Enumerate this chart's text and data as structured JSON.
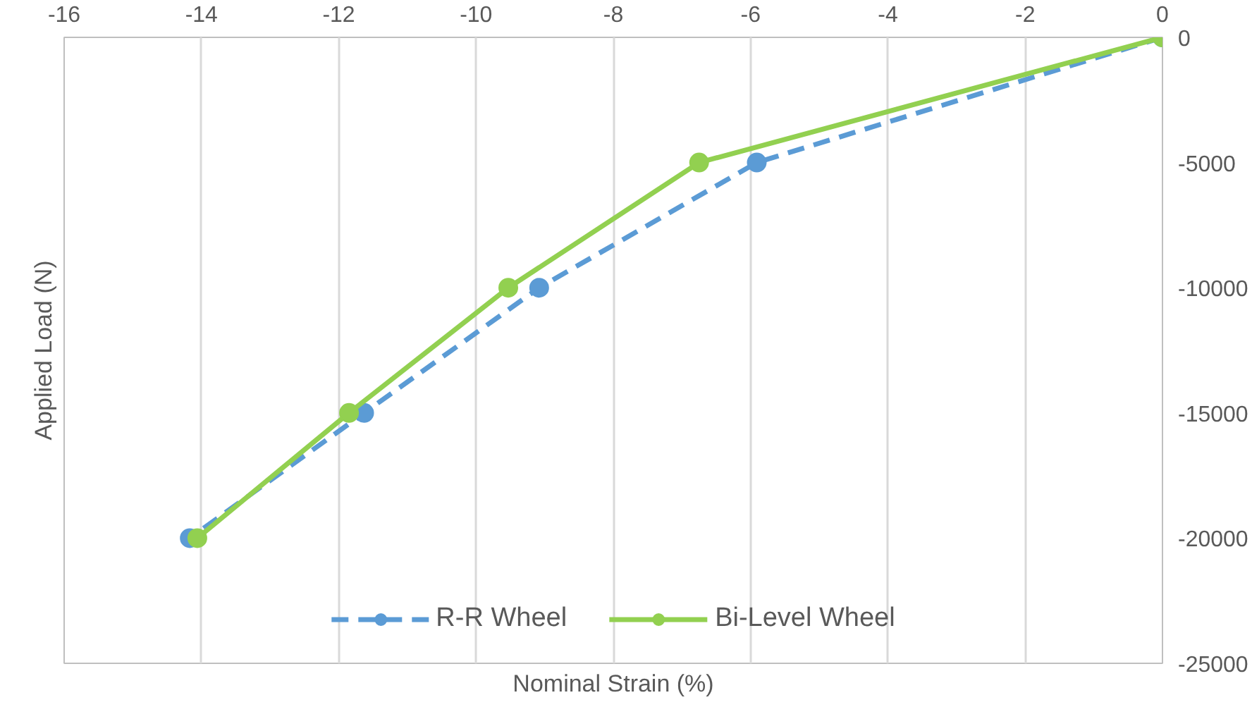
{
  "chart_data": {
    "type": "line",
    "xlabel": "Nominal Strain (%)",
    "ylabel": "Applied Load (N)",
    "xlim": [
      -16,
      0
    ],
    "xticks": [
      -16,
      -14,
      -12,
      -10,
      -8,
      -6,
      -4,
      -2,
      0
    ],
    "ylim": [
      -25000,
      0
    ],
    "yticks": [
      -25000,
      -20000,
      -15000,
      -10000,
      -5000,
      0
    ],
    "grid": "x",
    "legend": "bottom",
    "marker": "circle",
    "series": [
      {
        "name": "R-R Wheel",
        "color": "#5b9bd5",
        "line_style": "dashed",
        "x": [
          0,
          -5.91,
          -9.08,
          -11.63,
          -14.17
        ],
        "values": [
          0,
          -5000,
          -10000,
          -15000,
          -20000
        ]
      },
      {
        "name": "Bi-Level Wheel",
        "color": "#92d050",
        "line_style": "solid",
        "x": [
          0,
          -6.75,
          -9.53,
          -11.85,
          -14.06
        ],
        "values": [
          0,
          -5000,
          -10000,
          -15000,
          -20000
        ]
      }
    ]
  }
}
